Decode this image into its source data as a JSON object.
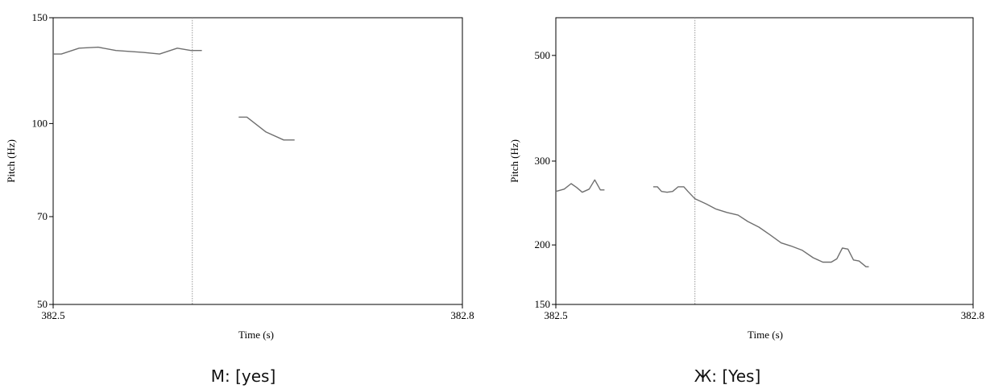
{
  "chart_data": [
    {
      "type": "line",
      "xlabel": "Time (s)",
      "ylabel": "Pitch (Hz)",
      "xlim": [
        382.5,
        382.8
      ],
      "ylim": [
        50,
        150
      ],
      "yscale": "log",
      "x_tick_labels": [
        "382.5",
        "382.8"
      ],
      "y_ticks": [
        {
          "value": 150,
          "label": "150"
        },
        {
          "value": 100,
          "label": "100"
        },
        {
          "value": 70,
          "label": "70"
        },
        {
          "value": 50,
          "label": "50"
        }
      ],
      "cursor_x": 382.602,
      "caption": "М:  [yes]",
      "series": [
        {
          "segments": [
            [
              [
                382.5,
                130.5
              ],
              [
                382.506,
                130.5
              ],
              [
                382.519,
                133.5
              ],
              [
                382.533,
                134.0
              ],
              [
                382.546,
                132.3
              ],
              [
                382.566,
                131.3
              ],
              [
                382.578,
                130.5
              ],
              [
                382.591,
                133.5
              ],
              [
                382.601,
                132.3
              ],
              [
                382.609,
                132.3
              ]
            ],
            [
              [
                382.636,
                102.5
              ],
              [
                382.642,
                102.5
              ],
              [
                382.656,
                96.8
              ],
              [
                382.669,
                93.9
              ],
              [
                382.677,
                93.9
              ]
            ]
          ]
        }
      ]
    },
    {
      "type": "line",
      "xlabel": "Time (s)",
      "ylabel": "Pitch (Hz)",
      "xlim": [
        382.5,
        382.8
      ],
      "ylim": [
        150,
        600
      ],
      "yscale": "log",
      "x_tick_labels": [
        "382.5",
        "382.8"
      ],
      "y_ticks": [
        {
          "value": 500,
          "label": "500"
        },
        {
          "value": 300,
          "label": "300"
        },
        {
          "value": 200,
          "label": "200"
        },
        {
          "value": 150,
          "label": "150"
        }
      ],
      "cursor_x": 382.6,
      "caption": "Ж:  [Yes]",
      "series": [
        {
          "segments": [
            [
              [
                382.5,
                259
              ],
              [
                382.506,
                262
              ],
              [
                382.511,
                269
              ],
              [
                382.515,
                264
              ],
              [
                382.519,
                258
              ],
              [
                382.524,
                262
              ],
              [
                382.528,
                274
              ],
              [
                382.532,
                261
              ],
              [
                382.535,
                261
              ]
            ],
            [
              [
                382.57,
                265
              ],
              [
                382.573,
                265
              ],
              [
                382.576,
                259
              ],
              [
                382.58,
                258
              ],
              [
                382.584,
                259
              ],
              [
                382.588,
                265
              ],
              [
                382.592,
                265
              ],
              [
                382.595,
                259
              ],
              [
                382.6,
                250
              ],
              [
                382.608,
                244
              ],
              [
                382.615,
                238
              ],
              [
                382.623,
                234
              ],
              [
                382.631,
                231
              ],
              [
                382.638,
                224
              ],
              [
                382.646,
                218
              ],
              [
                382.654,
                210
              ],
              [
                382.662,
                202
              ],
              [
                382.669,
                199
              ],
              [
                382.677,
                195
              ],
              [
                382.685,
                188
              ],
              [
                382.692,
                184
              ],
              [
                382.698,
                184
              ],
              [
                382.702,
                187
              ],
              [
                382.706,
                197
              ],
              [
                382.71,
                196
              ],
              [
                382.714,
                186
              ],
              [
                382.718,
                185
              ],
              [
                382.723,
                180
              ],
              [
                382.725,
                180
              ]
            ]
          ]
        }
      ]
    }
  ]
}
